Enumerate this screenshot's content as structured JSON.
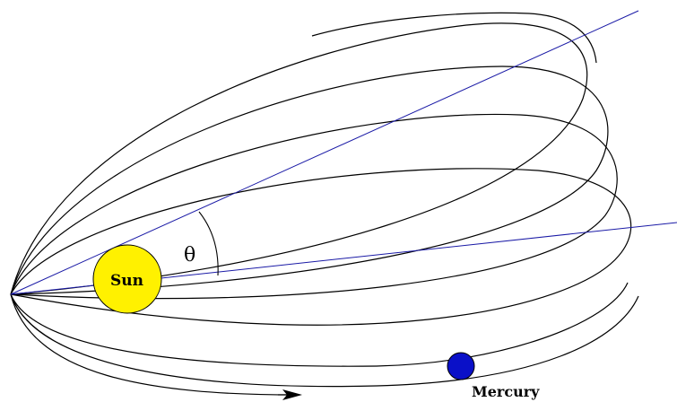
{
  "labels": {
    "sun": "Sun",
    "planet": "Mercury",
    "angle": "θ"
  },
  "colors": {
    "sun_fill": "#fff100",
    "planet_fill": "#0a10c8",
    "axis_line": "#1a1aa6",
    "orbit_line": "#000000"
  }
}
